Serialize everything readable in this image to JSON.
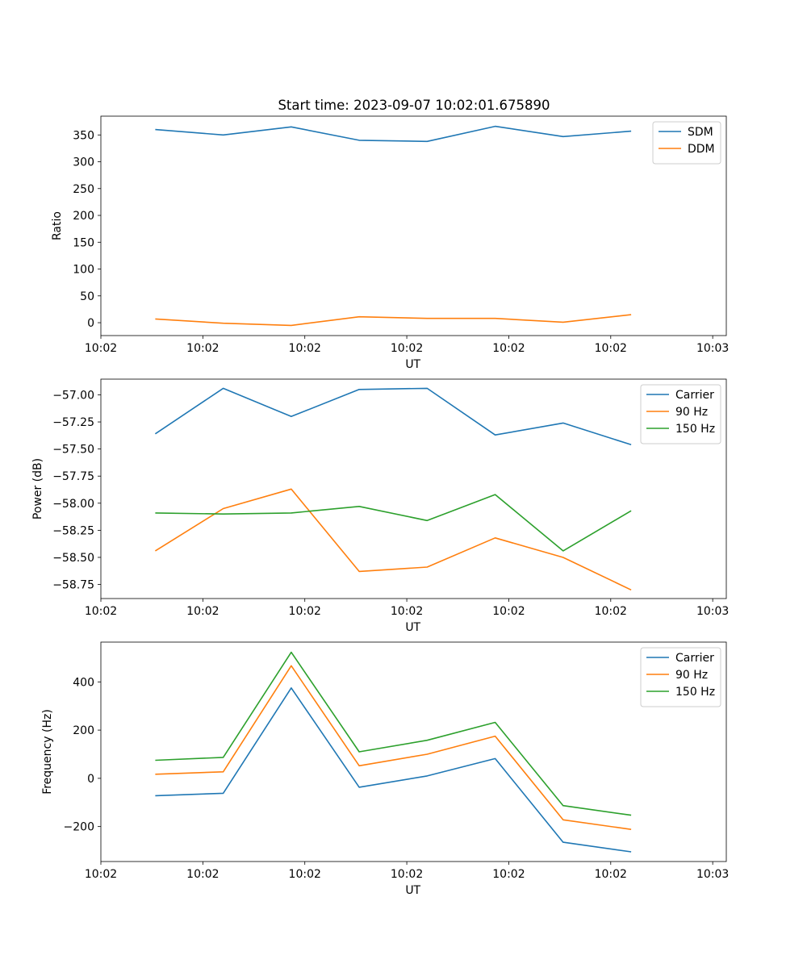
{
  "title": "Start time: 2023-09-07 10:02:01.675890",
  "colors": {
    "blue": "#1f77b4",
    "orange": "#ff7f0e",
    "green": "#2ca02c"
  },
  "chart_data": [
    {
      "type": "line",
      "title": "Start time: 2023-09-07 10:02:01.675890",
      "xlabel": "UT",
      "ylabel": "Ratio",
      "x": [
        1,
        2,
        3,
        4,
        5,
        6,
        7,
        8
      ],
      "xlim": [
        0.2,
        9.4
      ],
      "xticks": [
        0.2,
        1.7,
        3.2,
        4.7,
        6.2,
        7.7,
        9.2
      ],
      "xtick_labels": [
        "10:02",
        "10:02",
        "10:02",
        "10:02",
        "10:02",
        "10:02",
        "10:03"
      ],
      "ylim": [
        -24,
        385
      ],
      "yticks": [
        0,
        50,
        100,
        150,
        200,
        250,
        300,
        350
      ],
      "ytick_labels": [
        "0",
        "50",
        "100",
        "150",
        "200",
        "250",
        "300",
        "350"
      ],
      "legend_position": "top-right",
      "series": [
        {
          "name": "SDM",
          "color": "#1f77b4",
          "values": [
            360,
            350,
            365,
            340,
            338,
            366,
            347,
            357
          ]
        },
        {
          "name": "DDM",
          "color": "#ff7f0e",
          "values": [
            7,
            -1,
            -5,
            11,
            8,
            8,
            1,
            15
          ]
        }
      ]
    },
    {
      "type": "line",
      "title": "",
      "xlabel": "UT",
      "ylabel": "Power (dB)",
      "x": [
        1,
        2,
        3,
        4,
        5,
        6,
        7,
        8
      ],
      "xlim": [
        0.2,
        9.4
      ],
      "xticks": [
        0.2,
        1.7,
        3.2,
        4.7,
        6.2,
        7.7,
        9.2
      ],
      "xtick_labels": [
        "10:02",
        "10:02",
        "10:02",
        "10:02",
        "10:02",
        "10:02",
        "10:03"
      ],
      "ylim": [
        -58.88,
        -56.855
      ],
      "yticks": [
        -57.0,
        -57.25,
        -57.5,
        -57.75,
        -58.0,
        -58.25,
        -58.5,
        -58.75
      ],
      "ytick_labels": [
        "−57.00",
        "−57.25",
        "−57.50",
        "−57.75",
        "−58.00",
        "−58.25",
        "−58.50",
        "−58.75"
      ],
      "legend_position": "top-right",
      "series": [
        {
          "name": "Carrier",
          "color": "#1f77b4",
          "values": [
            -57.36,
            -56.94,
            -57.2,
            -56.95,
            -56.94,
            -57.37,
            -57.26,
            -57.46
          ]
        },
        {
          "name": "90 Hz",
          "color": "#ff7f0e",
          "values": [
            -58.44,
            -58.05,
            -57.87,
            -58.63,
            -58.59,
            -58.32,
            -58.5,
            -58.8
          ]
        },
        {
          "name": "150 Hz",
          "color": "#2ca02c",
          "values": [
            -58.09,
            -58.1,
            -58.09,
            -58.03,
            -58.16,
            -57.92,
            -58.44,
            -58.07
          ]
        }
      ]
    },
    {
      "type": "line",
      "title": "",
      "xlabel": "UT",
      "ylabel": "Frequency (Hz)",
      "x": [
        1,
        2,
        3,
        4,
        5,
        6,
        7,
        8
      ],
      "xlim": [
        0.2,
        9.4
      ],
      "xticks": [
        0.2,
        1.7,
        3.2,
        4.7,
        6.2,
        7.7,
        9.2
      ],
      "xtick_labels": [
        "10:02",
        "10:02",
        "10:02",
        "10:02",
        "10:02",
        "10:02",
        "10:03"
      ],
      "ylim": [
        -345,
        565
      ],
      "yticks": [
        -200,
        0,
        200,
        400
      ],
      "ytick_labels": [
        "−200",
        "0",
        "200",
        "400"
      ],
      "legend_position": "top-right",
      "series": [
        {
          "name": "Carrier",
          "color": "#1f77b4",
          "values": [
            -72,
            -62,
            375,
            -37,
            10,
            82,
            -265,
            -305
          ]
        },
        {
          "name": "90 Hz",
          "color": "#ff7f0e",
          "values": [
            17,
            27,
            467,
            52,
            100,
            175,
            -172,
            -212
          ]
        },
        {
          "name": "150 Hz",
          "color": "#2ca02c",
          "values": [
            75,
            87,
            523,
            110,
            158,
            232,
            -113,
            -153
          ]
        }
      ]
    }
  ]
}
